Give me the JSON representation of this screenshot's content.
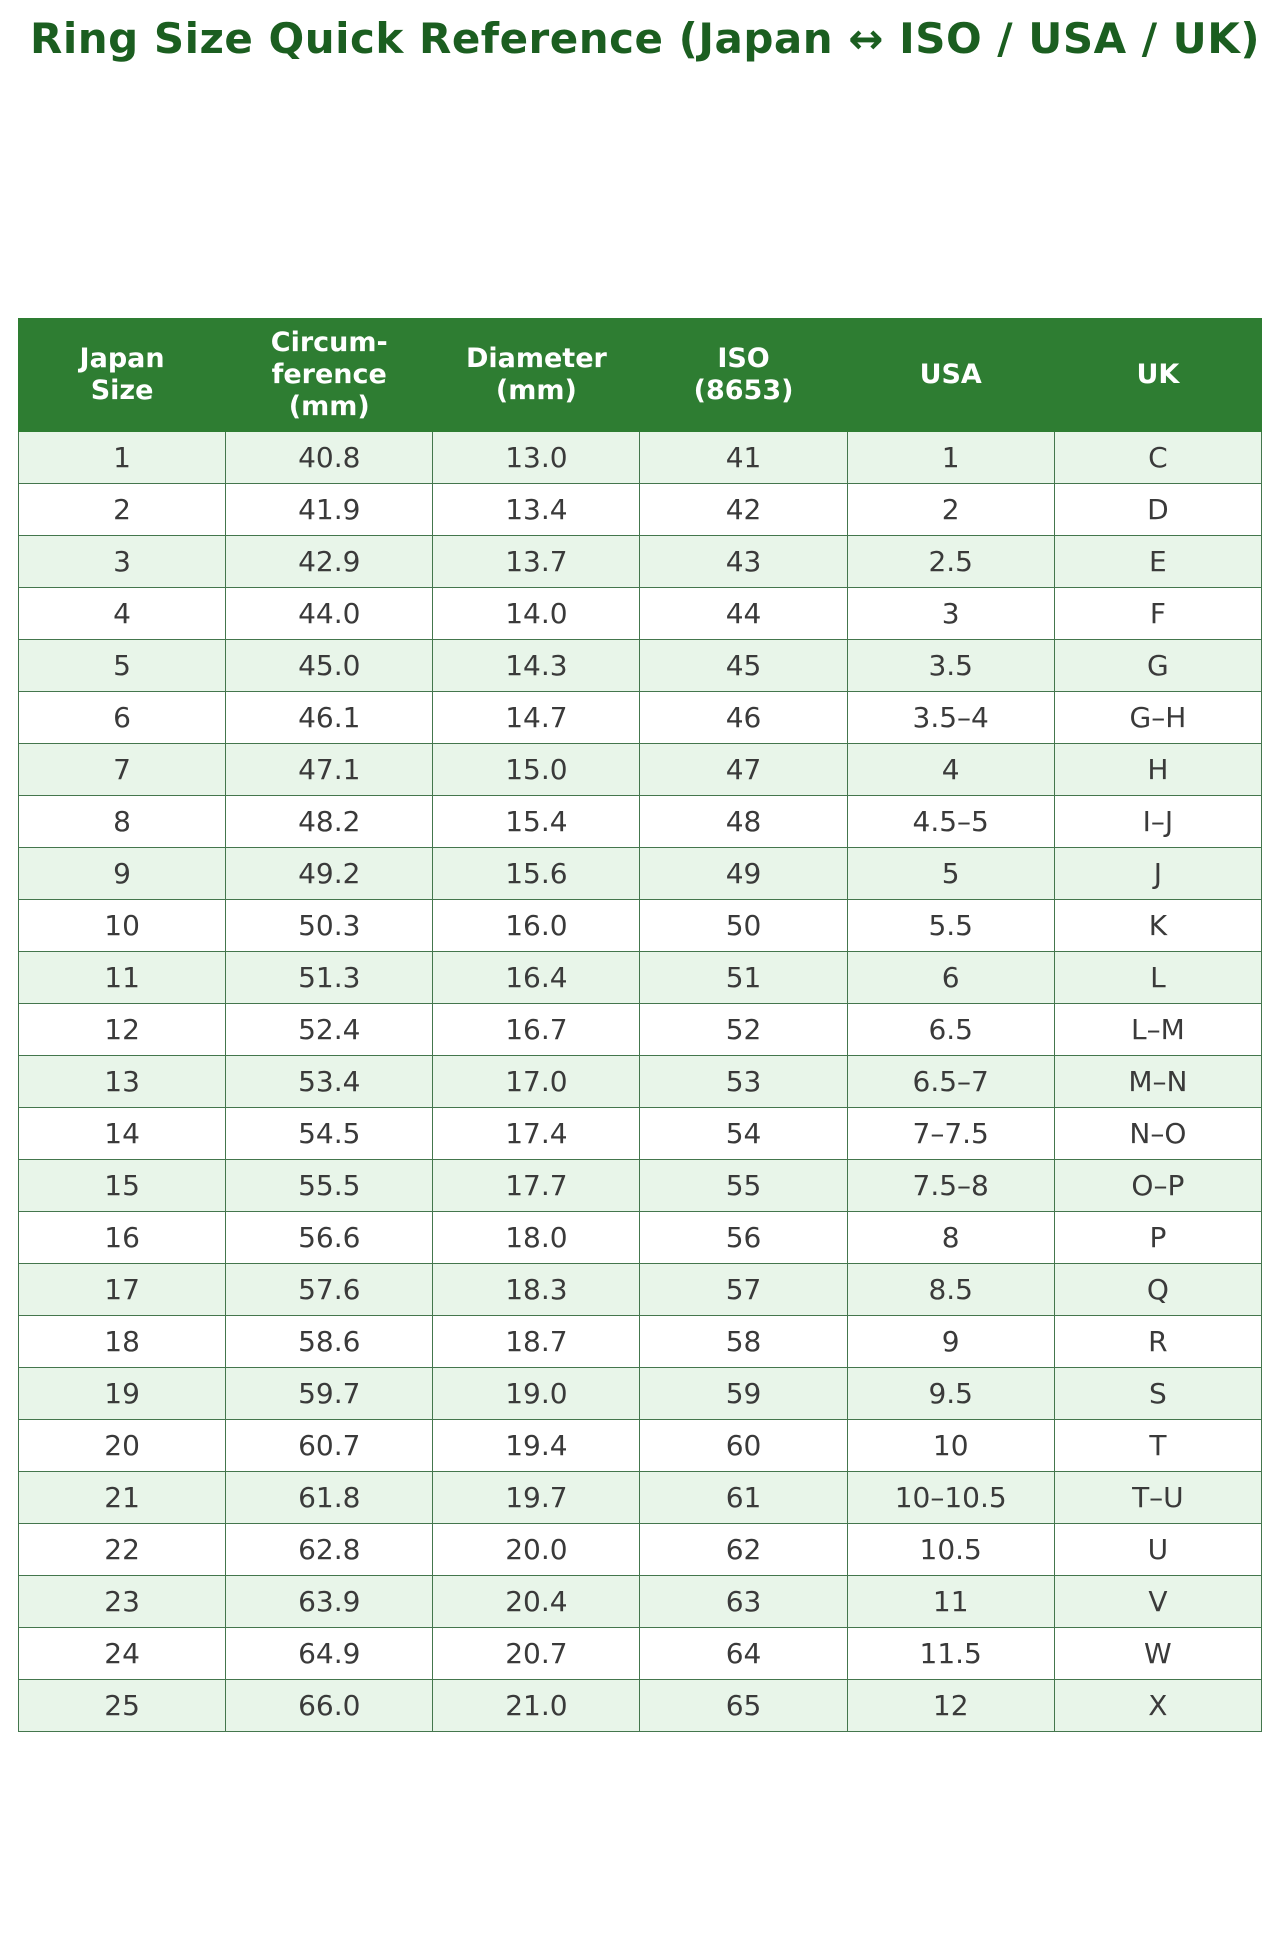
{
  "page": {
    "title": "Ring Size Quick Reference (Japan ↔ ISO / USA / UK)"
  },
  "colors": {
    "title_text": "#1b5e20",
    "header_bg": "#2e7d32",
    "header_text": "#ffffff",
    "row_alt_bg": "#e8f5e9",
    "row_bg": "#ffffff",
    "border": "#44764d",
    "cell_text": "#3a3a3a"
  },
  "table": {
    "headers": [
      "Japan\nSize",
      "Circum-\nference\n(mm)",
      "Diameter\n(mm)",
      "ISO\n(8653)",
      "USA",
      "UK"
    ],
    "rows": [
      [
        "1",
        "40.8",
        "13.0",
        "41",
        "1",
        "C"
      ],
      [
        "2",
        "41.9",
        "13.4",
        "42",
        "2",
        "D"
      ],
      [
        "3",
        "42.9",
        "13.7",
        "43",
        "2.5",
        "E"
      ],
      [
        "4",
        "44.0",
        "14.0",
        "44",
        "3",
        "F"
      ],
      [
        "5",
        "45.0",
        "14.3",
        "45",
        "3.5",
        "G"
      ],
      [
        "6",
        "46.1",
        "14.7",
        "46",
        "3.5–4",
        "G–H"
      ],
      [
        "7",
        "47.1",
        "15.0",
        "47",
        "4",
        "H"
      ],
      [
        "8",
        "48.2",
        "15.4",
        "48",
        "4.5–5",
        "I–J"
      ],
      [
        "9",
        "49.2",
        "15.6",
        "49",
        "5",
        "J"
      ],
      [
        "10",
        "50.3",
        "16.0",
        "50",
        "5.5",
        "K"
      ],
      [
        "11",
        "51.3",
        "16.4",
        "51",
        "6",
        "L"
      ],
      [
        "12",
        "52.4",
        "16.7",
        "52",
        "6.5",
        "L–M"
      ],
      [
        "13",
        "53.4",
        "17.0",
        "53",
        "6.5–7",
        "M–N"
      ],
      [
        "14",
        "54.5",
        "17.4",
        "54",
        "7–7.5",
        "N–O"
      ],
      [
        "15",
        "55.5",
        "17.7",
        "55",
        "7.5–8",
        "O–P"
      ],
      [
        "16",
        "56.6",
        "18.0",
        "56",
        "8",
        "P"
      ],
      [
        "17",
        "57.6",
        "18.3",
        "57",
        "8.5",
        "Q"
      ],
      [
        "18",
        "58.6",
        "18.7",
        "58",
        "9",
        "R"
      ],
      [
        "19",
        "59.7",
        "19.0",
        "59",
        "9.5",
        "S"
      ],
      [
        "20",
        "60.7",
        "19.4",
        "60",
        "10",
        "T"
      ],
      [
        "21",
        "61.8",
        "19.7",
        "61",
        "10–10.5",
        "T–U"
      ],
      [
        "22",
        "62.8",
        "20.0",
        "62",
        "10.5",
        "U"
      ],
      [
        "23",
        "63.9",
        "20.4",
        "63",
        "11",
        "V"
      ],
      [
        "24",
        "64.9",
        "20.7",
        "64",
        "11.5",
        "W"
      ],
      [
        "25",
        "66.0",
        "21.0",
        "65",
        "12",
        "X"
      ]
    ]
  }
}
